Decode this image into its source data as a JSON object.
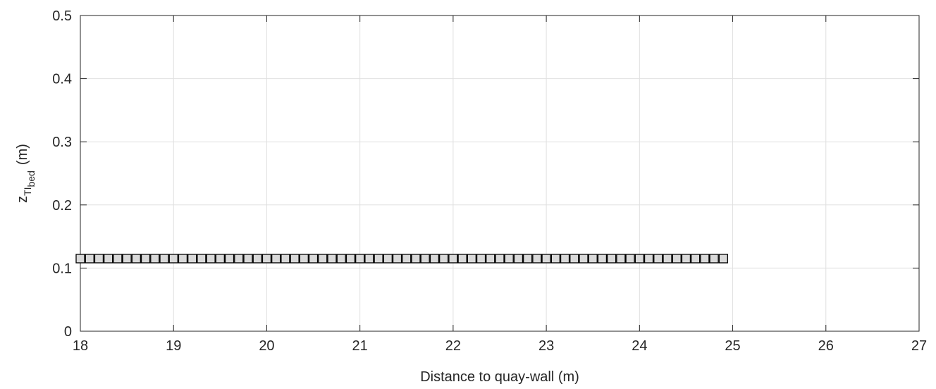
{
  "chart_data": {
    "type": "scatter",
    "xlabel": "Distance to quay-wall (m)",
    "ylabel": {
      "main": "z",
      "sub1": "TI",
      "sub2": "bed",
      "unit": "(m)"
    },
    "xlim": [
      18,
      27
    ],
    "ylim": [
      0,
      0.5
    ],
    "xticks": [
      18,
      19,
      20,
      21,
      22,
      23,
      24,
      25,
      26,
      27
    ],
    "yticks": [
      0,
      0.1,
      0.2,
      0.3,
      0.4,
      0.5
    ],
    "xtick_labels": [
      "18",
      "19",
      "20",
      "21",
      "22",
      "23",
      "24",
      "25",
      "26",
      "27"
    ],
    "ytick_labels": [
      "0",
      "0.1",
      "0.2",
      "0.3",
      "0.4",
      "0.5"
    ],
    "grid": true,
    "marker": "square",
    "marker_face_color": "#d9d9d9",
    "marker_edge_color": "#000000",
    "series": [
      {
        "x_start": 18.0,
        "x_end": 24.9,
        "x_step": 0.1,
        "y": 0.115
      }
    ]
  }
}
